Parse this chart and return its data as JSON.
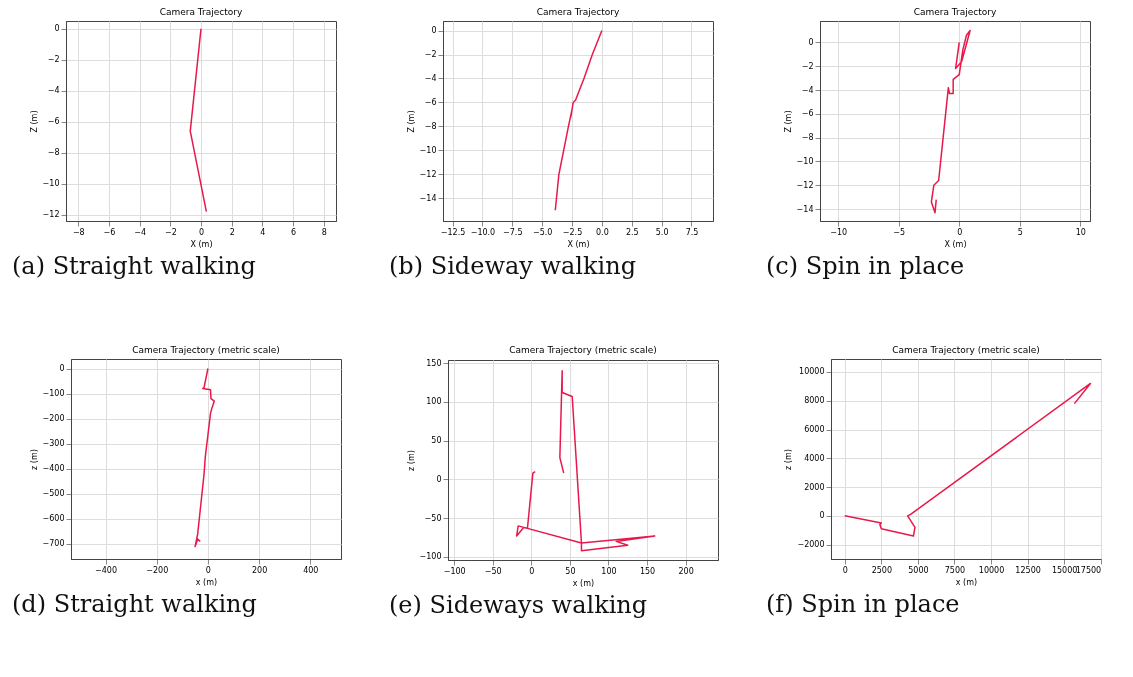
{
  "chart_data": [
    {
      "type": "line",
      "title": "Camera Trajectory",
      "xlabel": "X (m)",
      "ylabel": "Z (m)",
      "annotations": [
        "(a) Straight walking"
      ],
      "grid": true,
      "xlim": [
        -8.8,
        8.8
      ],
      "ylim": [
        -12.4,
        0.5
      ],
      "xticks": [
        -8,
        -6,
        -4,
        -2,
        0,
        2,
        4,
        6,
        8
      ],
      "yticks": [
        0,
        -2,
        -4,
        -6,
        -8,
        -10,
        -12
      ],
      "series": [
        {
          "color": "#e8194a",
          "x": [
            0,
            -0.7,
            0.35
          ],
          "values": [
            0,
            -6.6,
            -11.8
          ]
        }
      ]
    },
    {
      "type": "line",
      "title": "Camera Trajectory",
      "xlabel": "X (m)",
      "ylabel": "Z (m)",
      "annotations": [
        "(b) Sideway walking"
      ],
      "grid": true,
      "xlim": [
        -13.3,
        9.3
      ],
      "ylim": [
        -15.9,
        0.8
      ],
      "xticks": [
        {
          "value": -12.5,
          "label": "−12.5"
        },
        {
          "value": -10,
          "label": "−10.0"
        },
        {
          "value": -7.5,
          "label": "−7.5"
        },
        {
          "value": -5,
          "label": "−5.0"
        },
        {
          "value": -2.5,
          "label": "−2.5"
        },
        {
          "value": 0,
          "label": "0.0"
        },
        {
          "value": 2.5,
          "label": "2.5"
        },
        {
          "value": 5,
          "label": "5.0"
        },
        {
          "value": 7.5,
          "label": "7.5"
        }
      ],
      "yticks": [
        0,
        -2,
        -4,
        -6,
        -8,
        -10,
        -12,
        -14
      ],
      "series": [
        {
          "color": "#e8194a",
          "x": [
            0,
            -0.8,
            -1.5,
            -2.2,
            -2.4,
            -2.6,
            -2.5,
            -2.8,
            -3.2,
            -3.6,
            -3.9
          ],
          "values": [
            0,
            -2,
            -4,
            -5.8,
            -6,
            -7.2,
            -6.6,
            -8,
            -10,
            -12,
            -15
          ]
        }
      ]
    },
    {
      "type": "line",
      "title": "Camera Trajectory",
      "xlabel": "X (m)",
      "ylabel": "Z (m)",
      "annotations": [
        "(c) Spin in place"
      ],
      "grid": true,
      "xlim": [
        -11.5,
        10.8
      ],
      "ylim": [
        -15,
        1.8
      ],
      "xticks": [
        -10,
        -5,
        0,
        5,
        10
      ],
      "yticks": [
        0,
        -2,
        -4,
        -6,
        -8,
        -10,
        -12,
        -14
      ],
      "series": [
        {
          "color": "#e8194a",
          "x": [
            0,
            -0.3,
            0.2,
            0.9,
            0.6,
            0.3,
            0,
            -0.5,
            -0.5,
            -0.8,
            -0.9,
            -1.7,
            -2.1,
            -2.3,
            -2,
            -1.9
          ],
          "values": [
            0,
            -2.2,
            -1.6,
            1,
            0.6,
            -0.6,
            -2.7,
            -3.1,
            -4.3,
            -4.3,
            -3.8,
            -11.6,
            -12,
            -13.4,
            -14.3,
            -13.2
          ]
        }
      ]
    },
    {
      "type": "line",
      "title": "Camera Trajectory (metric scale)",
      "xlabel": "x (m)",
      "ylabel": "z (m)",
      "annotations": [
        "(d) Straight walking"
      ],
      "grid": true,
      "xlim": [
        -535,
        520
      ],
      "ylim": [
        -760,
        38
      ],
      "xticks": [
        -400,
        -200,
        0,
        200,
        400
      ],
      "yticks": [
        0,
        -100,
        -200,
        -300,
        -400,
        -500,
        -600,
        -700
      ],
      "series": [
        {
          "color": "#e8194a",
          "x": [
            0,
            -15,
            -20,
            10,
            12,
            25,
            15,
            10,
            -10,
            -15,
            -40,
            -50,
            -40,
            -30
          ],
          "values": [
            0,
            -75,
            -80,
            -85,
            -120,
            -130,
            -160,
            -180,
            -350,
            -420,
            -660,
            -710,
            -680,
            -690
          ]
        }
      ]
    },
    {
      "type": "line",
      "title": "Camera Trajectory (metric scale)",
      "xlabel": "x (m)",
      "ylabel": "z (m)",
      "annotations": [
        "(e) Sideways walking"
      ],
      "grid": true,
      "xlim": [
        -108,
        242
      ],
      "ylim": [
        -104,
        154
      ],
      "xticks": [
        -100,
        -50,
        0,
        50,
        100,
        150,
        200
      ],
      "yticks": [
        150,
        100,
        50,
        0,
        -50,
        -100
      ],
      "series": [
        {
          "color": "#e8194a",
          "x": [
            42,
            37,
            40,
            40,
            53,
            65,
            160,
            110,
            125,
            65,
            65,
            -17,
            -19,
            -10,
            -5,
            2,
            5
          ],
          "values": [
            8,
            28,
            140,
            112,
            107,
            -82,
            -73,
            -80,
            -85,
            -92,
            -82,
            -60,
            -73,
            -62,
            -63,
            8,
            10
          ]
        }
      ]
    },
    {
      "type": "line",
      "title": "Camera Trajectory (metric scale)",
      "xlabel": "x (m)",
      "ylabel": "z (m)",
      "annotations": [
        "(f) Spin in place"
      ],
      "grid": true,
      "xlim": [
        -940,
        17520
      ],
      "ylim": [
        -3000,
        10900
      ],
      "xticks": [
        0,
        2500,
        5000,
        7500,
        10000,
        12500,
        15000,
        17500
      ],
      "yticks": [
        10000,
        8000,
        6000,
        4000,
        2000,
        0,
        -2000
      ],
      "series": [
        {
          "color": "#e8194a",
          "x": [
            0,
            2500,
            2400,
            2500,
            4700,
            4800,
            4300,
            4500,
            16800,
            15700
          ],
          "values": [
            0,
            -500,
            -600,
            -900,
            -1400,
            -800,
            0,
            100,
            9200,
            7800
          ]
        }
      ]
    }
  ]
}
